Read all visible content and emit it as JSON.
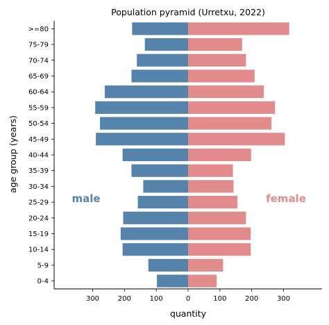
{
  "chart_data": {
    "type": "bar",
    "orientation": "horizontal-population-pyramid",
    "title": "Population pyramid (Urretxu, 2022)",
    "xlabel": "quantity",
    "ylabel": "age group (years)",
    "categories": [
      "0-4",
      "5-9",
      "10-14",
      "15-19",
      "20-24",
      "25-29",
      "30-34",
      "35-39",
      "40-44",
      "45-49",
      "50-54",
      "55-59",
      "60-64",
      "65-69",
      "70-74",
      "75-79",
      ">=80"
    ],
    "series": [
      {
        "name": "male",
        "color": "#5583ab",
        "values": [
          98,
          125,
          206,
          212,
          204,
          158,
          141,
          178,
          206,
          290,
          277,
          292,
          262,
          178,
          161,
          136,
          176
        ]
      },
      {
        "name": "female",
        "color": "#e38c8e",
        "values": [
          90,
          110,
          197,
          197,
          182,
          155,
          143,
          141,
          198,
          304,
          262,
          273,
          238,
          209,
          182,
          170,
          318
        ]
      }
    ],
    "xlim": [
      -400,
      400
    ],
    "xticks": [
      -300,
      -200,
      -100,
      0,
      100,
      200,
      300
    ],
    "xtick_labels": [
      "300",
      "200",
      "100",
      "0",
      "100",
      "200",
      "300"
    ],
    "side_labels": {
      "left": "male",
      "right": "female"
    },
    "legend": "none",
    "grid": false
  }
}
